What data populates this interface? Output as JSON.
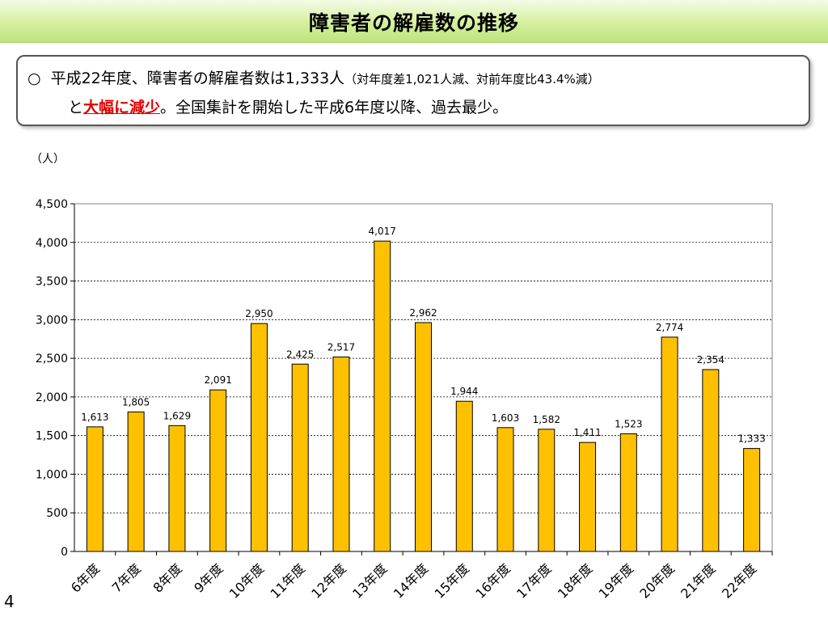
{
  "slide": {
    "title": "障害者の解雇数の推移",
    "page_number": "4"
  },
  "summary": {
    "bullet": "○",
    "line1_main": "平成22年度、障害者の解雇者数は1,333人",
    "line1_paren": "（対年度差1,021人減、対前年度比43.4%減）",
    "line2_pre": "と",
    "line2_emph": "大幅に減少",
    "line2_post": "。全国集計を開始した平成6年度以降、過去最少。"
  },
  "colors": {
    "bar_fill": "#FFC000",
    "bar_stroke": "#000000",
    "emphasis": "#E00000",
    "title_band": "#CDEB8B"
  },
  "chart_data": {
    "type": "bar",
    "unit_label": "（人）",
    "categories": [
      "6年度",
      "7年度",
      "8年度",
      "9年度",
      "10年度",
      "11年度",
      "12年度",
      "13年度",
      "14年度",
      "15年度",
      "16年度",
      "17年度",
      "18年度",
      "19年度",
      "20年度",
      "21年度",
      "22年度"
    ],
    "values": [
      1613,
      1805,
      1629,
      2091,
      2950,
      2425,
      2517,
      4017,
      2962,
      1944,
      1603,
      1582,
      1411,
      1523,
      2774,
      2354,
      1333
    ],
    "data_labels": [
      "1,613",
      "1,805",
      "1,629",
      "2,091",
      "2,950",
      "2,425",
      "2,517",
      "4,017",
      "2,962",
      "1,944",
      "1,603",
      "1,582",
      "1,411",
      "1,523",
      "2,774",
      "2,354",
      "1,333"
    ],
    "y_ticks": [
      0,
      500,
      1000,
      1500,
      2000,
      2500,
      3000,
      3500,
      4000,
      4500
    ],
    "y_tick_labels": [
      "0",
      "500",
      "1,000",
      "1,500",
      "2,000",
      "2,500",
      "3,000",
      "3,500",
      "4,000",
      "4,500"
    ],
    "ylim": [
      0,
      4500
    ],
    "grid": true,
    "legend": "none"
  }
}
